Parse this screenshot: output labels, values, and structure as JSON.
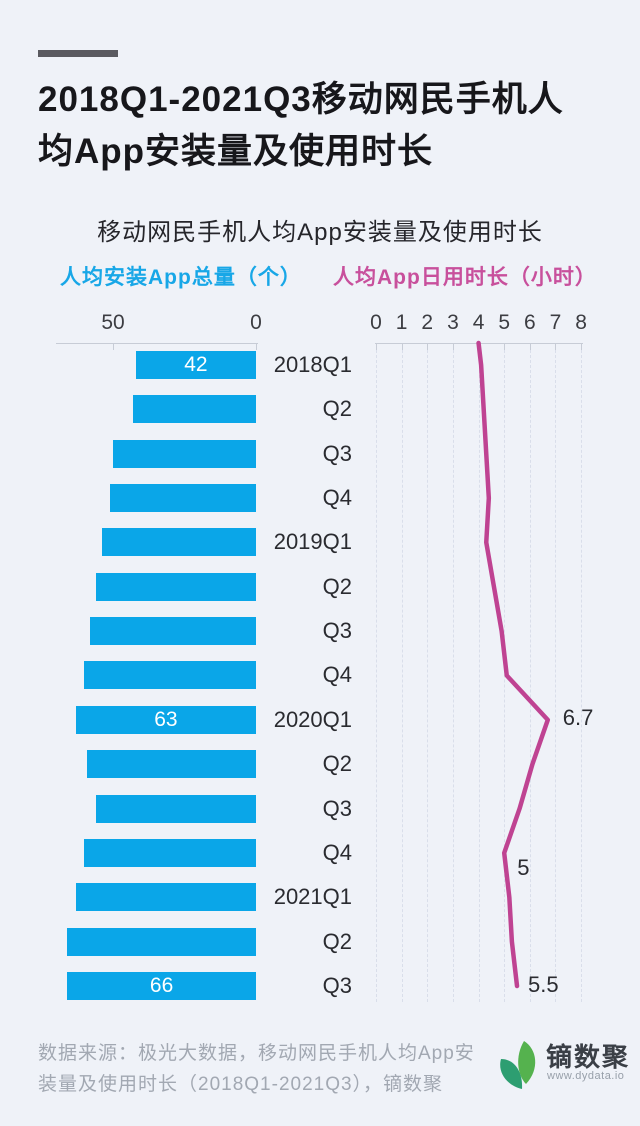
{
  "header": {
    "title": "2018Q1-2021Q3移动网民手机人均App安装量及使用时长",
    "title_lines": [
      "2018Q1-2021Q3移动网民手机人",
      "均App安装量及使用时长"
    ]
  },
  "chart": {
    "subtitle": "移动网民手机人均App安装量及使用时长",
    "left_axis_title": "人均安装App总量（个）",
    "right_axis_title": "人均App日用时长（小时）"
  },
  "chart_data": {
    "type": "bar+line",
    "orientation": "horizontal",
    "categories": [
      "2018Q1",
      "Q2",
      "Q3",
      "Q4",
      "2019Q1",
      "Q2",
      "Q3",
      "Q4",
      "2020Q1",
      "Q2",
      "Q3",
      "Q4",
      "2021Q1",
      "Q2",
      "Q3"
    ],
    "series": [
      {
        "name": "人均安装App总量（个）",
        "type": "bar",
        "values": [
          42,
          43,
          50,
          51,
          54,
          56,
          58,
          60,
          63,
          59,
          56,
          60,
          63,
          66,
          66
        ],
        "point_labels": [
          {
            "category_index": 0,
            "text": "42"
          },
          {
            "category_index": 8,
            "text": "63"
          },
          {
            "category_index": 14,
            "text": "66"
          }
        ]
      },
      {
        "name": "人均App日用时长（小时）",
        "type": "line",
        "values": [
          4.1,
          4.2,
          4.3,
          4.4,
          4.3,
          4.6,
          4.9,
          5.1,
          6.7,
          6.1,
          5.6,
          5.0,
          5.2,
          5.3,
          5.5
        ],
        "line_axis_crossing": 4.0,
        "point_labels": [
          {
            "category_index": 8,
            "text": "6.7"
          },
          {
            "category_index": 11,
            "text": "5"
          },
          {
            "category_index": 14,
            "text": "5.5"
          }
        ]
      }
    ],
    "bar_axis": {
      "ticks": [
        50,
        0
      ],
      "max": 70,
      "direction": "right-to-left",
      "grid": false
    },
    "line_axis": {
      "ticks": [
        0,
        1,
        2,
        3,
        4,
        5,
        6,
        7,
        8
      ],
      "min": 0,
      "max": 8,
      "grid": "dashed-vertical"
    }
  },
  "colors": {
    "background": "#eff2f8",
    "bar_blue": "#0aa6e8",
    "line_pink": "#bf4392",
    "legend_blue": "#18a7e7",
    "legend_pink": "#c8509c",
    "leaf_teal": "#2d9e71",
    "leaf_green": "#55b24e"
  },
  "footer": {
    "source": "数据来源：极光大数据，移动网民手机人均App安装量及使用时长（2018Q1-2021Q3），镝数聚",
    "source_lines": [
      "数据来源：极光大数据，移动网民手机人均App安",
      "装量及使用时长（2018Q1-2021Q3），镝数聚"
    ],
    "logo_text": "镝数聚",
    "logo_url": "www.dydata.io"
  }
}
